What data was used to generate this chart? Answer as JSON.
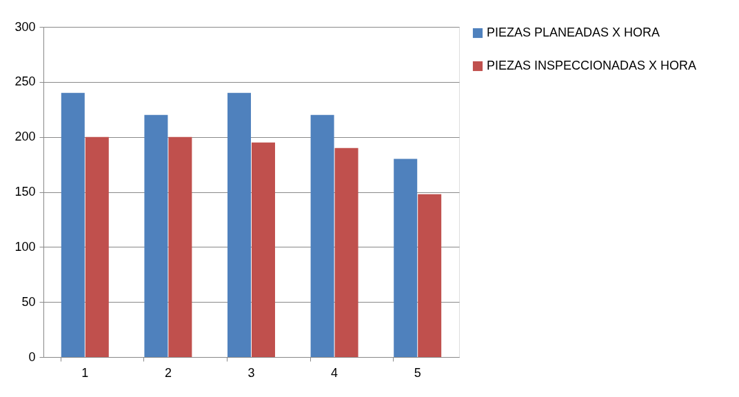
{
  "chart_data": {
    "type": "bar",
    "categories": [
      "1",
      "2",
      "3",
      "4",
      "5"
    ],
    "series": [
      {
        "name": "PIEZAS PLANEADAS X HORA",
        "color": "#4f81bd",
        "values": [
          240,
          220,
          240,
          220,
          180
        ]
      },
      {
        "name": "PIEZAS INSPECCIONADAS X HORA",
        "color": "#c0504d",
        "values": [
          200,
          200,
          195,
          190,
          148
        ]
      }
    ],
    "ylim": [
      0,
      300
    ],
    "yticks": [
      0,
      50,
      100,
      150,
      200,
      250,
      300
    ],
    "grid": "y",
    "legend": "right"
  }
}
